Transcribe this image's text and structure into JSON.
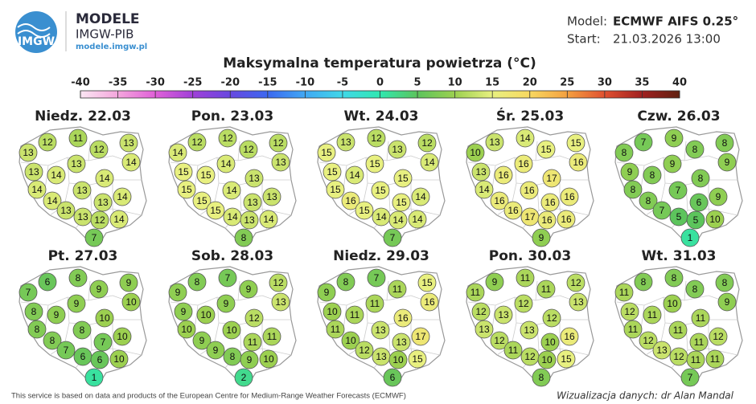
{
  "header": {
    "logo_text": "IMGW",
    "brand": "MODELE",
    "brand_sub": "IMGW-PIB",
    "url": "modele.imgw.pl",
    "model_label": "Model:",
    "model": "ECMWF AIFS 0.25°",
    "start_label": "Start:",
    "start": "21.03.2026 13:00"
  },
  "title": "Maksymalna temperatura powietrza (°C)",
  "colorbar": {
    "ticks": [
      -40,
      -35,
      -30,
      -25,
      -20,
      -15,
      -10,
      -5,
      0,
      5,
      10,
      15,
      20,
      25,
      30,
      35,
      40
    ],
    "colors": [
      "#fbe6f3",
      "#f4a6dc",
      "#e060d8",
      "#a040d8",
      "#6848e0",
      "#3c68f0",
      "#40a8f4",
      "#40d8e8",
      "#30e8b0",
      "#5cc45c",
      "#9cd050",
      "#e8f080",
      "#f8d860",
      "#f4a040",
      "#e05030",
      "#a02020",
      "#602010"
    ]
  },
  "panels": [
    {
      "title": "Niedz. 22.03",
      "values": [
        13,
        12,
        11,
        12,
        13,
        13,
        14,
        13,
        14,
        14,
        13,
        14,
        14,
        13,
        14,
        13,
        13,
        12,
        14,
        7
      ]
    },
    {
      "title": "Pon. 23.03",
      "values": [
        14,
        12,
        12,
        12,
        12,
        15,
        15,
        14,
        13,
        15,
        14,
        13,
        15,
        13,
        13,
        15,
        14,
        13,
        14,
        8
      ]
    },
    {
      "title": "Wt. 24.03",
      "values": [
        15,
        13,
        12,
        13,
        12,
        15,
        14,
        15,
        14,
        15,
        15,
        15,
        16,
        15,
        14,
        15,
        14,
        14,
        14,
        7
      ]
    },
    {
      "title": "Śr. 25.03",
      "values": [
        10,
        13,
        14,
        15,
        15,
        13,
        16,
        16,
        16,
        14,
        16,
        17,
        16,
        16,
        16,
        16,
        17,
        16,
        16,
        9
      ]
    },
    {
      "title": "Czw. 26.03",
      "values": [
        8,
        7,
        9,
        8,
        8,
        9,
        8,
        9,
        9,
        8,
        7,
        8,
        8,
        6,
        9,
        7,
        5,
        5,
        10,
        1
      ]
    },
    {
      "title": "Pt. 27.03",
      "values": [
        7,
        6,
        8,
        9,
        9,
        8,
        9,
        9,
        10,
        8,
        8,
        10,
        8,
        7,
        10,
        7,
        6,
        6,
        10,
        1
      ]
    },
    {
      "title": "Sob. 28.03",
      "values": [
        9,
        8,
        7,
        9,
        12,
        9,
        10,
        9,
        13,
        10,
        10,
        12,
        9,
        11,
        11,
        9,
        8,
        9,
        10,
        2
      ]
    },
    {
      "title": "Niedz. 29.03",
      "values": [
        9,
        8,
        7,
        11,
        15,
        10,
        11,
        11,
        16,
        11,
        13,
        16,
        10,
        13,
        17,
        12,
        13,
        10,
        15,
        6
      ]
    },
    {
      "title": "Pon. 30.03",
      "values": [
        11,
        9,
        11,
        11,
        12,
        12,
        13,
        12,
        13,
        13,
        13,
        12,
        12,
        10,
        16,
        11,
        12,
        10,
        15,
        8
      ]
    },
    {
      "title": "Wt. 31.03",
      "values": [
        11,
        8,
        8,
        8,
        8,
        12,
        11,
        10,
        9,
        11,
        11,
        11,
        12,
        11,
        12,
        13,
        12,
        11,
        11,
        7
      ]
    }
  ],
  "footer": {
    "source": "This service is based on data and products of the European Centre for Medium-Range Weather Forecasts (ECMWF)",
    "credit": "Wizualizacja danych: dr Alan Mandal"
  }
}
